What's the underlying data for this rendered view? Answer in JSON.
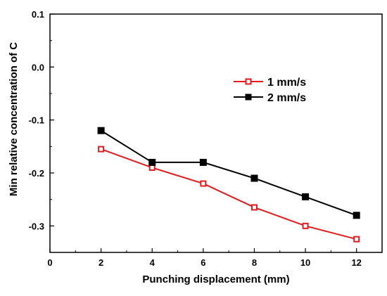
{
  "chart_data": {
    "type": "line",
    "xlabel": "Punching displacement (mm)",
    "ylabel": "Min relative concentration of C",
    "xlim": [
      0,
      13
    ],
    "ylim": [
      -0.35,
      0.1
    ],
    "x_ticks": [
      0,
      2,
      4,
      6,
      8,
      10,
      12
    ],
    "x_tick_labels": [
      "0",
      "2",
      "4",
      "6",
      "8",
      "10",
      "12"
    ],
    "y_ticks": [
      0.1,
      0.0,
      -0.1,
      -0.2,
      -0.3
    ],
    "y_tick_labels": [
      "0.1",
      "0.0",
      "-0.1",
      "-0.2",
      "-0.3"
    ],
    "legend_position": "upper-middle",
    "grid": false,
    "x": [
      2,
      4,
      6,
      8,
      10,
      12
    ],
    "series": [
      {
        "name": "1 mm/s",
        "values": [
          -0.155,
          -0.19,
          -0.22,
          -0.265,
          -0.3,
          -0.325
        ],
        "color": "#e8191b",
        "marker": "hollow-square"
      },
      {
        "name": "2 mm/s",
        "values": [
          -0.12,
          -0.18,
          -0.18,
          -0.21,
          -0.245,
          -0.28
        ],
        "color": "#000000",
        "marker": "filled-square"
      }
    ]
  }
}
